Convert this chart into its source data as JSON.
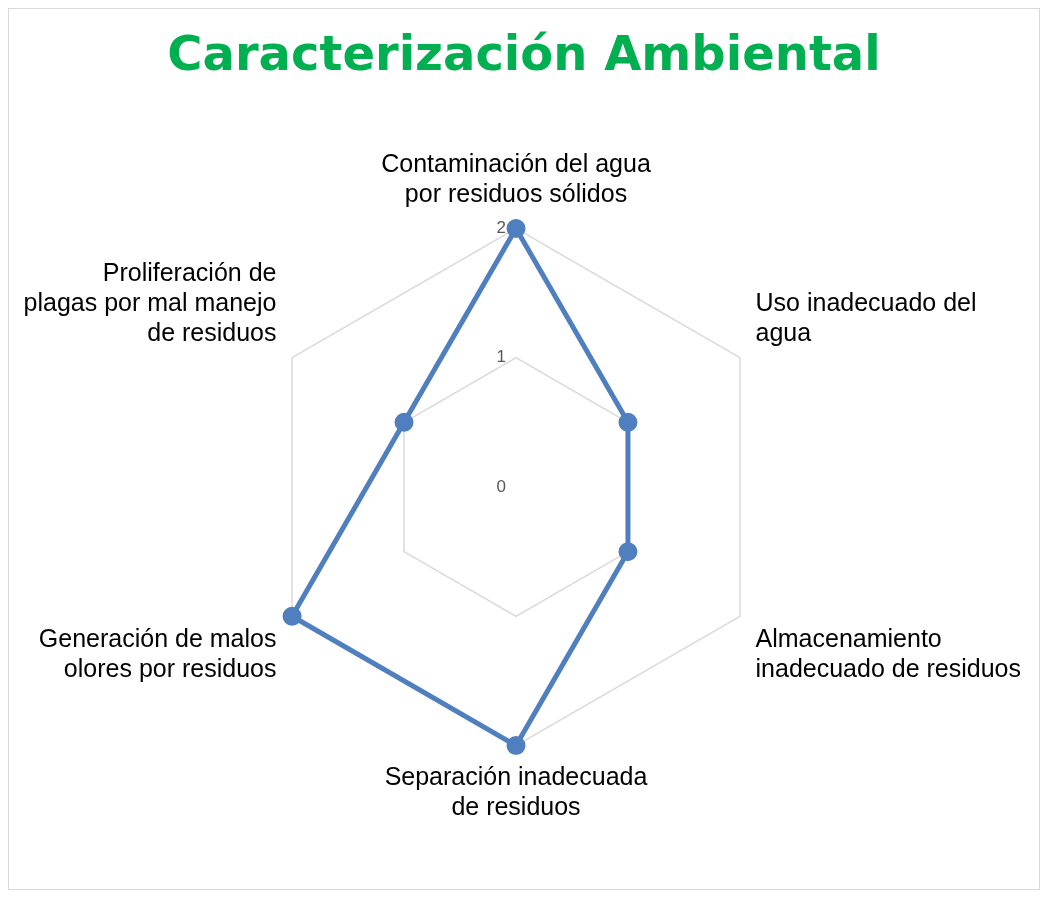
{
  "chart_data": {
    "type": "radar",
    "title": "Caracterización Ambiental",
    "categories": [
      "Contaminación del agua por residuos sólidos",
      "Uso inadecuado del agua",
      "Almacenamiento inadecuado de residuos",
      "Separación inadecuada de residuos",
      "Generación de malos olores por residuos",
      "Proliferación de plagas por mal manejo de residuos"
    ],
    "series": [
      {
        "color": "#4f7fbf",
        "values": [
          2,
          1,
          1,
          2,
          2,
          1
        ]
      }
    ],
    "ylim": [
      0,
      2
    ],
    "yticks": [
      0,
      1,
      2
    ],
    "grid": true,
    "legend": false,
    "marker": "circle",
    "line_style": "solid"
  }
}
